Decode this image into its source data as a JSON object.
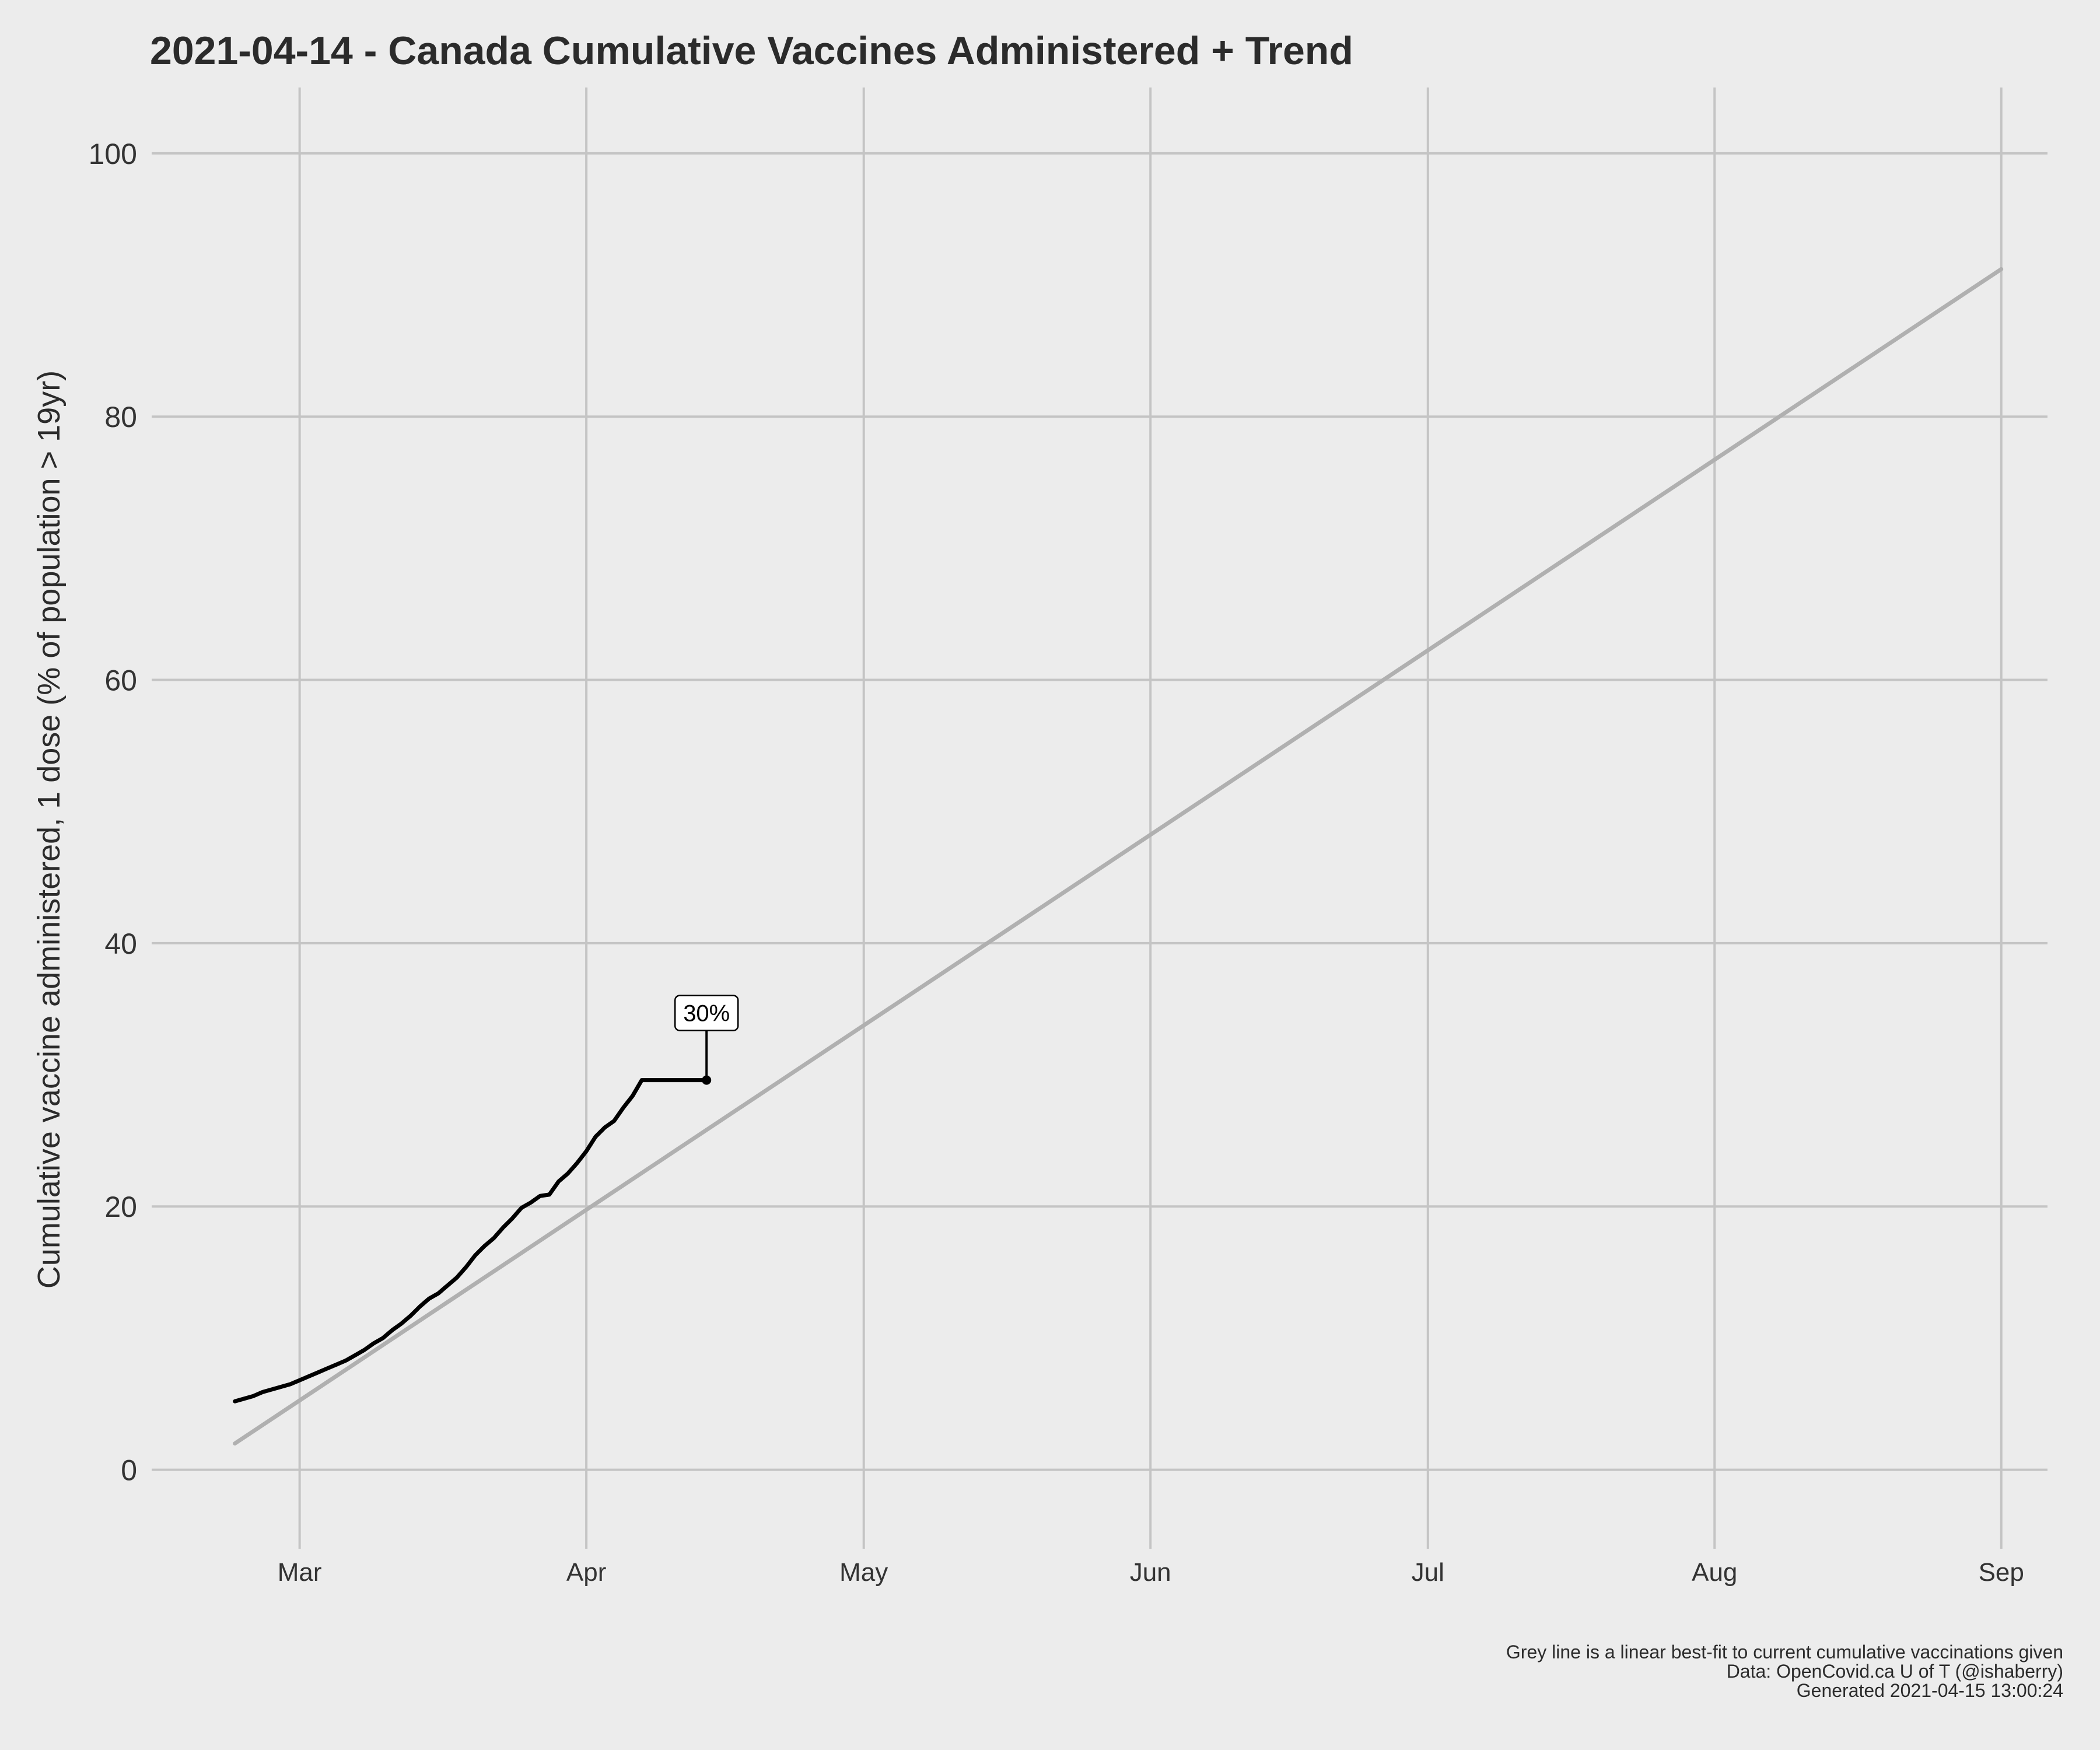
{
  "chart_data": {
    "type": "line",
    "title": "2021-04-14 - Canada Cumulative Vaccines Administered + Trend",
    "ylabel": "Cumulative vaccine administered, 1 dose (% of population > 19yr)",
    "xlabel": "",
    "ylim": [
      -6,
      105
    ],
    "xlim": [
      "2021-02-13",
      "2021-09-06"
    ],
    "yticks": [
      0,
      20,
      40,
      60,
      80,
      100
    ],
    "xticks": [
      {
        "date": "2021-03-01",
        "label": "Mar"
      },
      {
        "date": "2021-04-01",
        "label": "Apr"
      },
      {
        "date": "2021-05-01",
        "label": "May"
      },
      {
        "date": "2021-06-01",
        "label": "Jun"
      },
      {
        "date": "2021-07-01",
        "label": "Jul"
      },
      {
        "date": "2021-08-01",
        "label": "Aug"
      },
      {
        "date": "2021-09-01",
        "label": "Sep"
      }
    ],
    "grid": true,
    "series": [
      {
        "color": "#000000",
        "x": [
          "2021-02-22",
          "2021-02-23",
          "2021-02-24",
          "2021-02-25",
          "2021-02-26",
          "2021-02-27",
          "2021-02-28",
          "2021-03-01",
          "2021-03-02",
          "2021-03-03",
          "2021-03-04",
          "2021-03-05",
          "2021-03-06",
          "2021-03-07",
          "2021-03-08",
          "2021-03-09",
          "2021-03-10",
          "2021-03-11",
          "2021-03-12",
          "2021-03-13",
          "2021-03-14",
          "2021-03-15",
          "2021-03-16",
          "2021-03-17",
          "2021-03-18",
          "2021-03-19",
          "2021-03-20",
          "2021-03-21",
          "2021-03-22",
          "2021-03-23",
          "2021-03-24",
          "2021-03-25",
          "2021-03-26",
          "2021-03-27",
          "2021-03-28",
          "2021-03-29",
          "2021-03-30",
          "2021-03-31",
          "2021-04-01",
          "2021-04-02",
          "2021-04-03",
          "2021-04-04",
          "2021-04-05",
          "2021-04-06",
          "2021-04-07",
          "2021-04-08",
          "2021-04-09",
          "2021-04-10",
          "2021-04-11",
          "2021-04-12",
          "2021-04-13",
          "2021-04-14"
        ],
        "values": [
          5.2,
          5.4,
          5.6,
          5.9,
          6.1,
          6.3,
          6.5,
          6.8,
          7.1,
          7.4,
          7.7,
          8.0,
          8.3,
          8.7,
          9.1,
          9.6,
          10.0,
          10.6,
          11.1,
          11.7,
          12.4,
          13.0,
          13.4,
          14.0,
          14.6,
          15.4,
          16.3,
          17.0,
          17.6,
          18.4,
          19.1,
          19.9,
          20.3,
          20.8,
          20.9,
          21.9,
          22.5,
          23.3,
          24.2,
          25.3,
          26.0,
          26.5,
          27.5,
          28.4,
          29.6,
          29.6,
          29.6,
          29.6,
          29.6,
          29.6,
          29.6,
          29.6
        ]
      },
      {
        "color": "#b0b0b0",
        "x": [
          "2021-02-22",
          "2021-09-01"
        ],
        "values": [
          2.0,
          91.2
        ]
      }
    ],
    "annotations": [
      {
        "text": "30%",
        "x": "2021-04-14",
        "y": 29.6
      }
    ],
    "caption": [
      "Grey line is a linear best-fit to current cumulative vaccinations given",
      "Data: OpenCovid.ca U of T (@ishaberry)",
      "Generated 2021-04-15 13:00:24"
    ]
  }
}
